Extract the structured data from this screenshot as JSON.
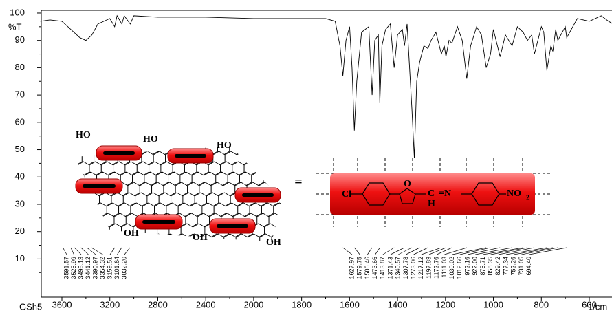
{
  "chart_data": {
    "type": "line",
    "sample": "GSh5",
    "x_label": "1/cm",
    "y_label": "%T",
    "xlim": [
      3780,
      500
    ],
    "xticks": [
      3600,
      3200,
      2800,
      2400,
      2000,
      1800,
      1600,
      1400,
      1200,
      1000,
      800,
      600
    ],
    "ylim": [
      -4,
      101
    ],
    "yticks": [
      10,
      20,
      30,
      40,
      50,
      60,
      70,
      80,
      90,
      100
    ],
    "series": [
      {
        "name": "GSh5",
        "color": "#000000",
        "x": [
          3780,
          3700,
          3600,
          3550,
          3500,
          3450,
          3400,
          3350,
          3300,
          3200,
          3160,
          3140,
          3100,
          3080,
          3030,
          3000,
          2800,
          2400,
          2000,
          1800,
          1700,
          1660,
          1640,
          1628,
          1615,
          1600,
          1590,
          1580,
          1570,
          1550,
          1520,
          1506,
          1495,
          1480,
          1474,
          1465,
          1450,
          1430,
          1414,
          1400,
          1380,
          1371,
          1360,
          1340,
          1330,
          1320,
          1308,
          1290,
          1273,
          1260,
          1240,
          1217,
          1205,
          1198,
          1185,
          1173,
          1150,
          1130,
          1111,
          1095,
          1070,
          1050,
          1030,
          1012,
          1000,
          972,
          950,
          922,
          900,
          876,
          858,
          840,
          829,
          800,
          790,
          777,
          760,
          752,
          740,
          731,
          700,
          694,
          650,
          600,
          550,
          520,
          500
        ],
        "values": [
          97,
          97.5,
          97,
          95,
          93,
          91,
          90,
          92,
          96,
          98,
          95,
          99,
          96,
          99,
          96,
          99,
          98.5,
          98.5,
          98,
          98,
          98,
          97,
          88,
          77,
          90,
          95,
          80,
          57,
          75,
          93,
          95,
          70,
          90,
          92,
          67,
          88,
          94,
          96,
          80,
          92,
          94,
          88,
          96,
          65,
          47,
          75,
          82,
          88,
          87,
          90,
          93,
          85,
          88,
          84,
          90,
          89,
          95,
          90,
          76,
          88,
          95,
          92,
          80,
          85,
          94,
          84,
          92,
          88,
          95,
          93,
          90,
          92,
          85,
          95,
          93,
          79,
          88,
          86,
          94,
          90,
          95,
          91,
          98,
          97,
          99,
          97,
          96
        ]
      }
    ],
    "peaks": [
      3591.57,
      3525.99,
      3495.13,
      3441.12,
      3390.97,
      3354.32,
      3159.51,
      3101.64,
      {
        "value": 3032.2,
        "label": "3032.20"
      },
      1627.97,
      1579.75,
      1506.46,
      1473.66,
      1413.87,
      1371.43,
      1340.57,
      1307.78,
      1273.06,
      1217.12,
      1197.83,
      1172.76,
      1111.03,
      1030.02,
      1012.66,
      972.16,
      {
        "value": 922,
        "label": "922.00"
      },
      875.71,
      858.35,
      829.42,
      777.34,
      752.26,
      731.05,
      {
        "value": 694.4,
        "label": "694.40"
      }
    ]
  },
  "inset": {
    "top_groups": [
      "HO",
      "HO",
      "HO"
    ],
    "bottom_groups": [
      "OH",
      "OH",
      "OH"
    ],
    "equals": "=",
    "molecule": {
      "chlorine": "Cl",
      "furan_oxygen": "O",
      "carbon": "C",
      "hydrogen": "H",
      "imine": "=N",
      "nitro": "NO",
      "nitro_subscript": "2"
    }
  }
}
